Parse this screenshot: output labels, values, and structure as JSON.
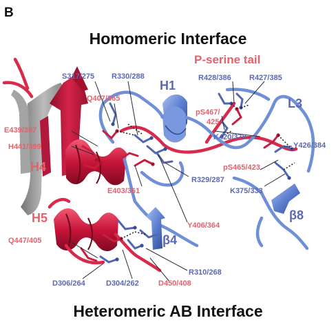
{
  "panel_letter": "B",
  "titles": {
    "top": "Homomeric Interface",
    "bottom": "Heteromeric AB Interface"
  },
  "structure_labels": {
    "p_serine_tail": "P-serine tail",
    "H1": "H1",
    "L3": "L3",
    "H4": "H4",
    "H5": "H5",
    "beta4": "β4",
    "beta8": "β8"
  },
  "residue_labels": {
    "S317_275": "S317/275",
    "R330_288": "R330/288",
    "Q407_365": "Q407/365",
    "R428_386": "R428/386",
    "R427_385": "R427/385",
    "pS467_line1": "pS467/",
    "pS467_line2": "425",
    "E439_397": "E439/397",
    "H441_399": "H441/399",
    "K420_378": "K420/378",
    "Y426_384": "Y426/384",
    "pS465_423": "pS465/423",
    "R329_287": "R329/287",
    "E403_361": "E403/361",
    "K375_333": "K375/333",
    "Y406_364": "Y406/364",
    "Q447_405": "Q447/405",
    "R310_268": "R310/268",
    "D306_264": "D306/264",
    "D304_262": "D304/262",
    "D450_408": "D450/408"
  },
  "colors": {
    "chain_red": "#d82a4a",
    "chain_blue": "#6f8fd6",
    "label_red": "#e8606a",
    "label_blue": "#5a68b8"
  }
}
